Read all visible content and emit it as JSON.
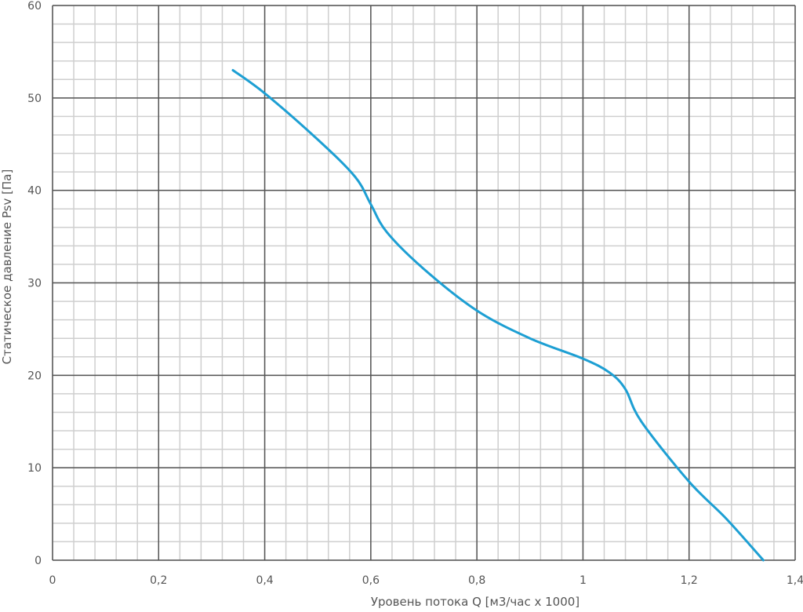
{
  "chart_data": {
    "type": "line",
    "title": "",
    "xlabel": "Уровень потока Q [м3/час x 1000]",
    "ylabel": "Статическое давление Psv [Па]",
    "xlim": [
      0,
      1.4
    ],
    "ylim": [
      0,
      60
    ],
    "x_ticks": [
      "0",
      "0,2",
      "0,4",
      "0,6",
      "0,8",
      "1",
      "1,2",
      "1,4"
    ],
    "y_ticks": [
      "0",
      "10",
      "20",
      "30",
      "40",
      "50",
      "60"
    ],
    "x_tick_values": [
      0,
      0.2,
      0.4,
      0.6,
      0.8,
      1.0,
      1.2,
      1.4
    ],
    "y_tick_values": [
      0,
      10,
      20,
      30,
      40,
      50,
      60
    ],
    "x_minor_step": 0.04,
    "y_minor_step": 2,
    "grid": true,
    "legend": "none",
    "series": [
      {
        "color": "#1d9fd3",
        "x": [
          0.34,
          0.4,
          0.5,
          0.57,
          0.6,
          0.63,
          0.7,
          0.8,
          0.9,
          1.0,
          1.05,
          1.08,
          1.11,
          1.2,
          1.27,
          1.34
        ],
        "y": [
          53,
          50.5,
          45.5,
          41.5,
          38.5,
          35.5,
          31.5,
          27,
          24,
          21.8,
          20.3,
          18.5,
          15,
          8.5,
          4.5,
          0
        ]
      }
    ]
  }
}
